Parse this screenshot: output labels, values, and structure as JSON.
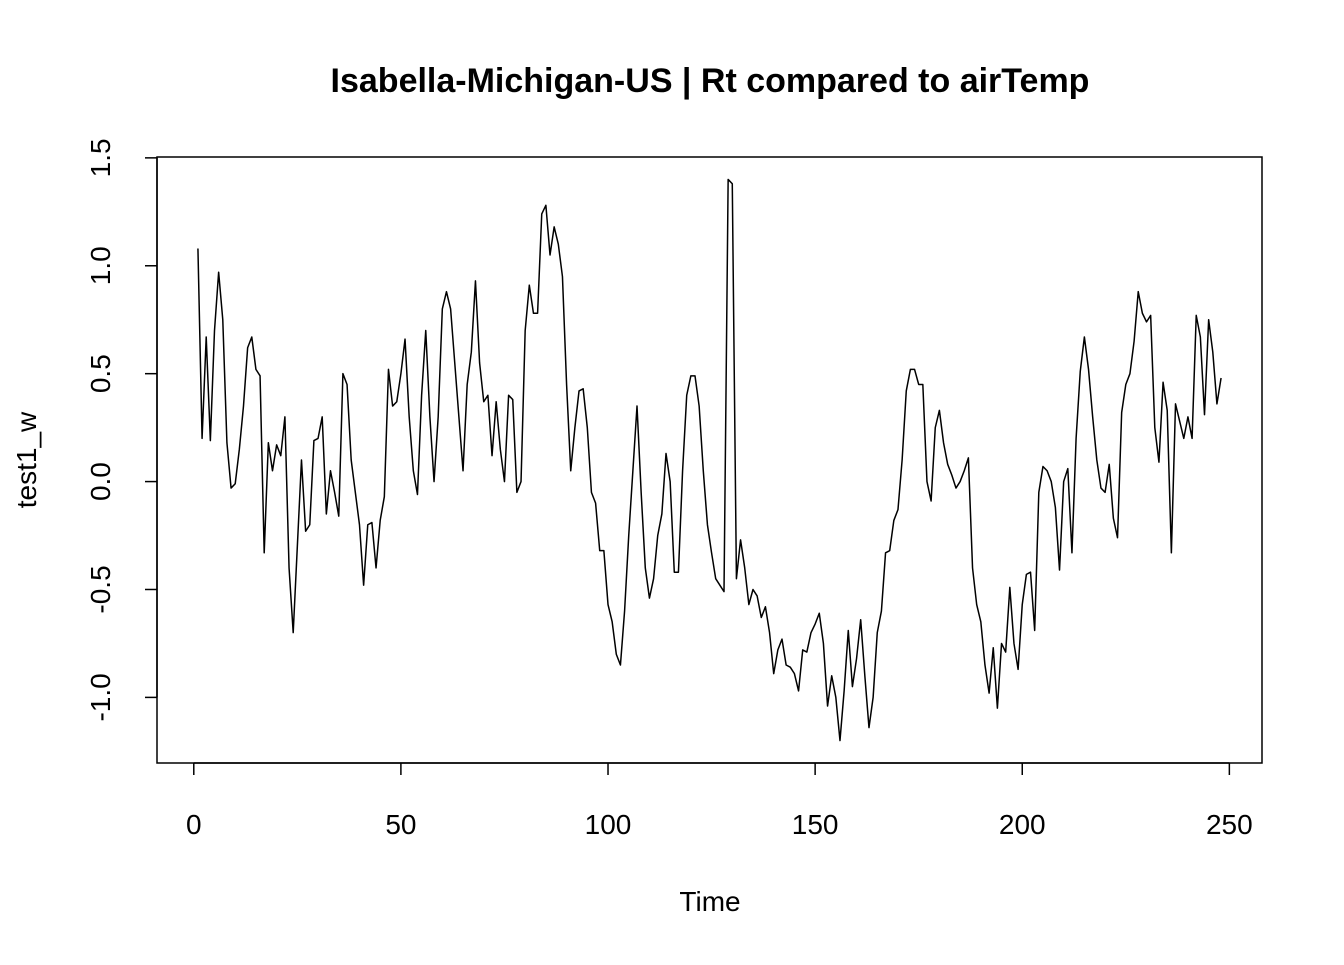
{
  "chart_data": {
    "type": "line",
    "title": "Isabella-Michigan-US | Rt compared to airTemp",
    "x_label": "Time",
    "y_label": "test1_w",
    "x": [
      1,
      2,
      3,
      4,
      5,
      6,
      7,
      8,
      9,
      10,
      11,
      12,
      13,
      14,
      15,
      16,
      17,
      18,
      19,
      20,
      21,
      22,
      23,
      24,
      25,
      26,
      27,
      28,
      29,
      30,
      31,
      32,
      33,
      34,
      35,
      36,
      37,
      38,
      39,
      40,
      41,
      42,
      43,
      44,
      45,
      46,
      47,
      48,
      49,
      50,
      51,
      52,
      53,
      54,
      55,
      56,
      57,
      58,
      59,
      60,
      61,
      62,
      63,
      64,
      65,
      66,
      67,
      68,
      69,
      70,
      71,
      72,
      73,
      74,
      75,
      76,
      77,
      78,
      79,
      80,
      81,
      82,
      83,
      84,
      85,
      86,
      87,
      88,
      89,
      90,
      91,
      92,
      93,
      94,
      95,
      96,
      97,
      98,
      99,
      100,
      101,
      102,
      103,
      104,
      105,
      106,
      107,
      108,
      109,
      110,
      111,
      112,
      113,
      114,
      115,
      116,
      117,
      118,
      119,
      120,
      121,
      122,
      123,
      124,
      125,
      126,
      127,
      128,
      129,
      130,
      131,
      132,
      133,
      134,
      135,
      136,
      137,
      138,
      139,
      140,
      141,
      142,
      143,
      144,
      145,
      146,
      147,
      148,
      149,
      150,
      151,
      152,
      153,
      154,
      155,
      156,
      157,
      158,
      159,
      160,
      161,
      162,
      163,
      164,
      165,
      166,
      167,
      168,
      169,
      170,
      171,
      172,
      173,
      174,
      175,
      176,
      177,
      178,
      179,
      180,
      181,
      182,
      183,
      184,
      185,
      186,
      187,
      188,
      189,
      190,
      191,
      192,
      193,
      194,
      195,
      196,
      197,
      198,
      199,
      200,
      201,
      202,
      203,
      204,
      205,
      206,
      207,
      208,
      209,
      210,
      211,
      212,
      213,
      214,
      215,
      216,
      217,
      218,
      219,
      220,
      221,
      222,
      223,
      224,
      225,
      226,
      227,
      228,
      229,
      230,
      231,
      232,
      233,
      234,
      235,
      236,
      237,
      238,
      239,
      240,
      241,
      242,
      243,
      244,
      245,
      246,
      247,
      248
    ],
    "series": [
      {
        "name": "test1_w",
        "color": "#000000",
        "values": [
          1.08,
          0.2,
          0.67,
          0.19,
          0.7,
          0.97,
          0.75,
          0.18,
          -0.03,
          -0.01,
          0.15,
          0.35,
          0.62,
          0.67,
          0.52,
          0.49,
          -0.33,
          0.18,
          0.05,
          0.17,
          0.12,
          0.3,
          -0.4,
          -0.7,
          -0.3,
          0.1,
          -0.23,
          -0.2,
          0.19,
          0.2,
          0.3,
          -0.15,
          0.05,
          -0.05,
          -0.16,
          0.5,
          0.45,
          0.1,
          -0.05,
          -0.2,
          -0.48,
          -0.2,
          -0.19,
          -0.4,
          -0.18,
          -0.07,
          0.52,
          0.35,
          0.37,
          0.5,
          0.66,
          0.3,
          0.05,
          -0.06,
          0.4,
          0.7,
          0.3,
          0.0,
          0.3,
          0.8,
          0.88,
          0.8,
          0.55,
          0.3,
          0.05,
          0.45,
          0.6,
          0.93,
          0.55,
          0.37,
          0.4,
          0.12,
          0.37,
          0.15,
          0.0,
          0.4,
          0.38,
          -0.05,
          0.0,
          0.7,
          0.91,
          0.78,
          0.78,
          1.24,
          1.28,
          1.05,
          1.18,
          1.1,
          0.95,
          0.45,
          0.05,
          0.25,
          0.42,
          0.43,
          0.25,
          -0.05,
          -0.1,
          -0.32,
          -0.32,
          -0.57,
          -0.65,
          -0.8,
          -0.85,
          -0.6,
          -0.25,
          0.05,
          0.35,
          -0.05,
          -0.4,
          -0.54,
          -0.45,
          -0.25,
          -0.15,
          0.13,
          0.0,
          -0.42,
          -0.42,
          0.05,
          0.4,
          0.49,
          0.49,
          0.35,
          0.05,
          -0.2,
          -0.33,
          -0.45,
          -0.48,
          -0.51,
          1.4,
          1.38,
          -0.45,
          -0.27,
          -0.4,
          -0.57,
          -0.5,
          -0.53,
          -0.63,
          -0.58,
          -0.7,
          -0.89,
          -0.78,
          -0.73,
          -0.85,
          -0.86,
          -0.89,
          -0.97,
          -0.78,
          -0.79,
          -0.7,
          -0.66,
          -0.61,
          -0.75,
          -1.04,
          -0.9,
          -1.0,
          -1.2,
          -0.97,
          -0.69,
          -0.95,
          -0.82,
          -0.64,
          -0.9,
          -1.14,
          -1.0,
          -0.7,
          -0.6,
          -0.33,
          -0.32,
          -0.18,
          -0.13,
          0.1,
          0.42,
          0.52,
          0.52,
          0.45,
          0.45,
          0.0,
          -0.09,
          0.25,
          0.33,
          0.18,
          0.08,
          0.03,
          -0.03,
          0.0,
          0.05,
          0.11,
          -0.4,
          -0.57,
          -0.65,
          -0.85,
          -0.98,
          -0.77,
          -1.05,
          -0.75,
          -0.79,
          -0.49,
          -0.75,
          -0.87,
          -0.57,
          -0.43,
          -0.42,
          -0.69,
          -0.05,
          0.07,
          0.05,
          0.0,
          -0.12,
          -0.41,
          0.0,
          0.06,
          -0.33,
          0.2,
          0.51,
          0.67,
          0.52,
          0.3,
          0.1,
          -0.03,
          -0.05,
          0.08,
          -0.17,
          -0.26,
          0.32,
          0.45,
          0.5,
          0.65,
          0.88,
          0.78,
          0.74,
          0.77,
          0.25,
          0.09,
          0.46,
          0.33,
          -0.33,
          0.36,
          0.28,
          0.2,
          0.3,
          0.2,
          0.77,
          0.67,
          0.31,
          0.75,
          0.6,
          0.36,
          0.48
        ]
      }
    ],
    "xlim": [
      -8.88,
      257.88
    ],
    "ylim": [
      -1.304,
      1.504
    ],
    "xticks": [
      0,
      50,
      100,
      150,
      200,
      250
    ],
    "yticks": [
      {
        "value": -1,
        "label": "-1.0"
      },
      {
        "value": -0.5,
        "label": "-0.5"
      },
      {
        "value": 0,
        "label": "0.0"
      },
      {
        "value": 0.5,
        "label": "0.5"
      },
      {
        "value": 1,
        "label": "1.0"
      },
      {
        "value": 1.5,
        "label": "1.5"
      }
    ]
  }
}
